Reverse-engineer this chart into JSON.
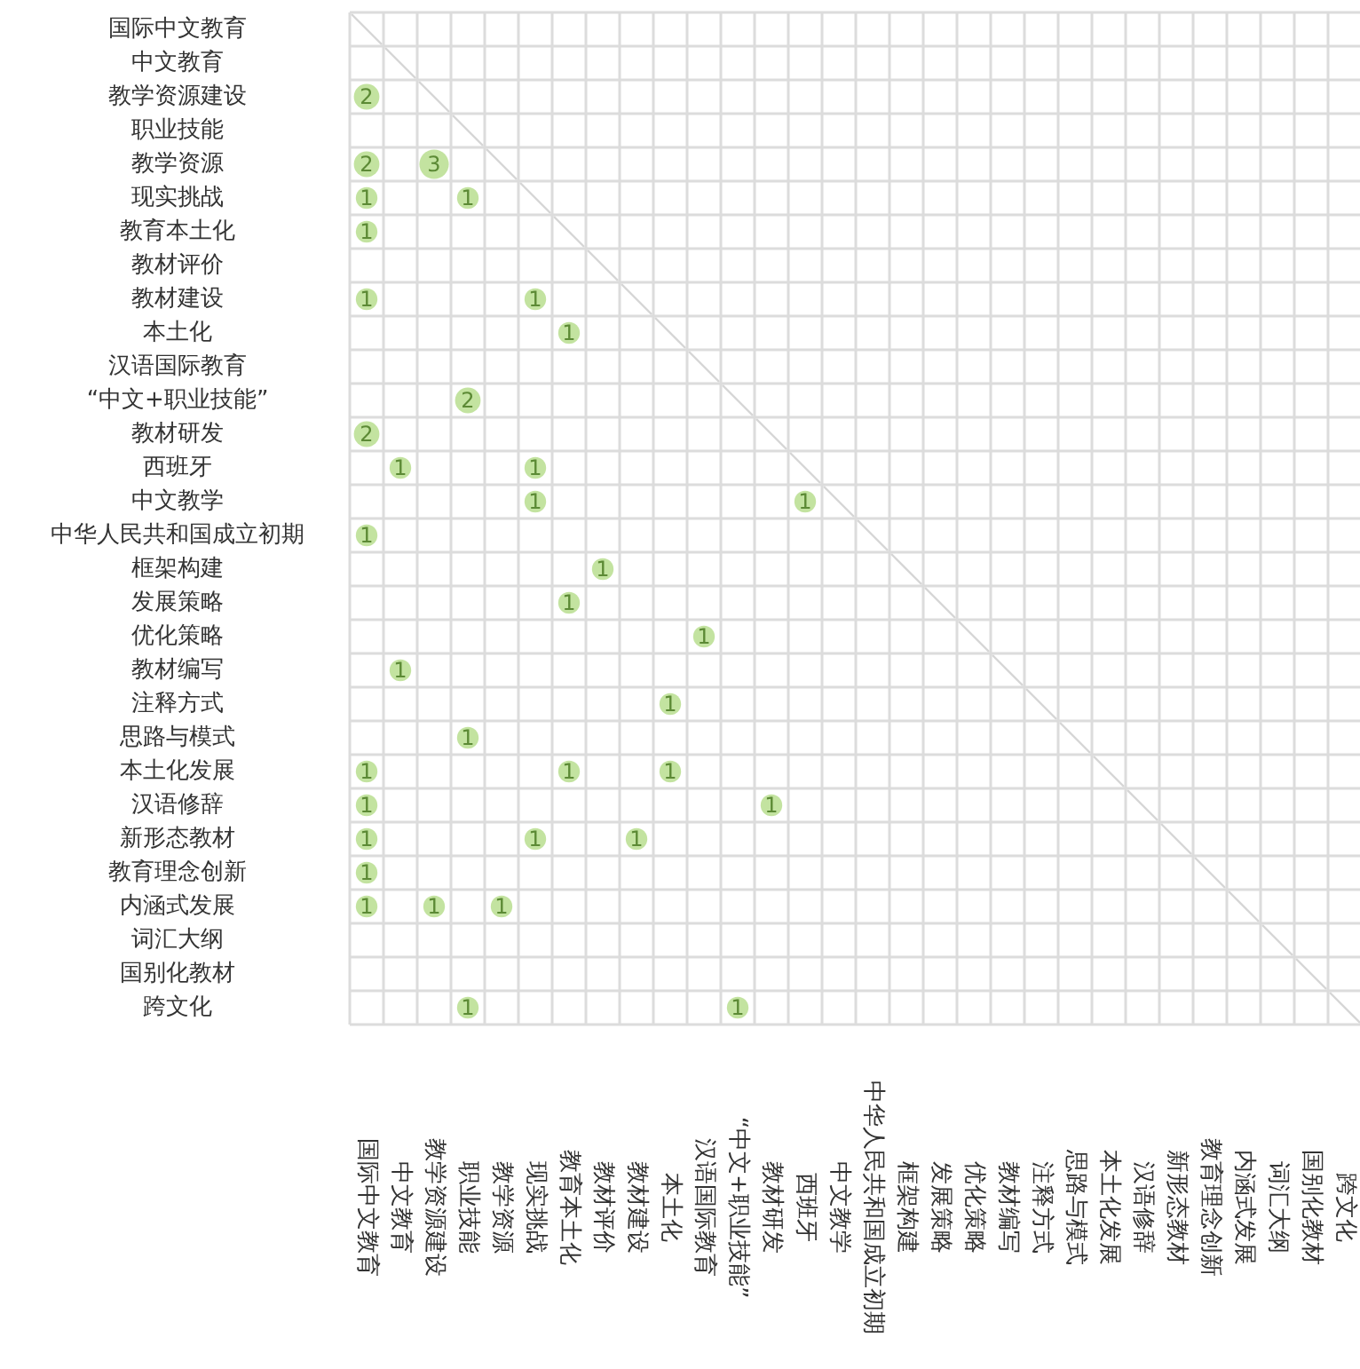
{
  "chart_data": {
    "type": "heatmap",
    "color": "#c3e3a0",
    "grid": true,
    "data_labels": true,
    "categories": [
      "国际中文教育",
      "中文教育",
      "教学资源建设",
      "职业技能",
      "教学资源",
      "现实挑战",
      "教育本土化",
      "教材评价",
      "教材建设",
      "本土化",
      "汉语国际教育",
      "“中文+职业技能”",
      "教材研发",
      "西班牙",
      "中文教学",
      "中华人民共和国成立初期",
      "框架构建",
      "发展策略",
      "优化策略",
      "教材编写",
      "注释方式",
      "思路与模式",
      "本土化发展",
      "汉语修辞",
      "新形态教材",
      "教育理念创新",
      "内涵式发展",
      "词汇大纲",
      "国别化教材",
      "跨文化"
    ],
    "y_categories": [
      "国际中文教育",
      "中文教育",
      "教学资源建设",
      "职业技能",
      "教学资源",
      "现实挑战",
      "教育本土化",
      "教材评价",
      "教材建设",
      "本土化",
      "汉语国际教育",
      "“中文+职业技能”",
      "教材研发",
      "西班牙",
      "中文教学",
      "中华人民共和国成立初期",
      "框架构建",
      "发展策略",
      "优化策略",
      "教材编写",
      "注释方式",
      "思路与模式",
      "本土化发展",
      "汉语修辞",
      "新形态教材",
      "教育理念创新",
      "内涵式发展",
      "词汇大纲",
      "国别化教材",
      "跨文化"
    ],
    "cells": [
      [
        null,
        null,
        null,
        null,
        null,
        null,
        null,
        null,
        null,
        null,
        null,
        null,
        null,
        null,
        null,
        null,
        null,
        null,
        null,
        null,
        null,
        null,
        null,
        null,
        null,
        null,
        null,
        null,
        null,
        null
      ],
      [
        null,
        null,
        null,
        null,
        null,
        null,
        null,
        null,
        null,
        null,
        null,
        null,
        null,
        null,
        null,
        null,
        null,
        null,
        null,
        null,
        null,
        null,
        null,
        null,
        null,
        null,
        null,
        null,
        null,
        null
      ],
      [
        2,
        null,
        null,
        null,
        null,
        null,
        null,
        null,
        null,
        null,
        null,
        null,
        null,
        null,
        null,
        null,
        null,
        null,
        null,
        null,
        null,
        null,
        null,
        null,
        null,
        null,
        null,
        null,
        null,
        null
      ],
      [
        null,
        null,
        null,
        null,
        null,
        null,
        null,
        null,
        null,
        null,
        null,
        null,
        null,
        null,
        null,
        null,
        null,
        null,
        null,
        null,
        null,
        null,
        null,
        null,
        null,
        null,
        null,
        null,
        null,
        null
      ],
      [
        2,
        null,
        3,
        null,
        null,
        null,
        null,
        null,
        null,
        null,
        null,
        null,
        null,
        null,
        null,
        null,
        null,
        null,
        null,
        null,
        null,
        null,
        null,
        null,
        null,
        null,
        null,
        null,
        null,
        null
      ],
      [
        1,
        null,
        null,
        1,
        null,
        null,
        null,
        null,
        null,
        null,
        null,
        null,
        null,
        null,
        null,
        null,
        null,
        null,
        null,
        null,
        null,
        null,
        null,
        null,
        null,
        null,
        null,
        null,
        null,
        null
      ],
      [
        1,
        null,
        null,
        null,
        null,
        null,
        null,
        null,
        null,
        null,
        null,
        null,
        null,
        null,
        null,
        null,
        null,
        null,
        null,
        null,
        null,
        null,
        null,
        null,
        null,
        null,
        null,
        null,
        null,
        null
      ],
      [
        null,
        null,
        null,
        null,
        null,
        null,
        null,
        null,
        null,
        null,
        null,
        null,
        null,
        null,
        null,
        null,
        null,
        null,
        null,
        null,
        null,
        null,
        null,
        null,
        null,
        null,
        null,
        null,
        null,
        null
      ],
      [
        1,
        null,
        null,
        null,
        null,
        1,
        null,
        null,
        null,
        null,
        null,
        null,
        null,
        null,
        null,
        null,
        null,
        null,
        null,
        null,
        null,
        null,
        null,
        null,
        null,
        null,
        null,
        null,
        null,
        null
      ],
      [
        null,
        null,
        null,
        null,
        null,
        null,
        1,
        null,
        null,
        null,
        null,
        null,
        null,
        null,
        null,
        null,
        null,
        null,
        null,
        null,
        null,
        null,
        null,
        null,
        null,
        null,
        null,
        null,
        null,
        null
      ],
      [
        null,
        null,
        null,
        null,
        null,
        null,
        null,
        null,
        null,
        null,
        null,
        null,
        null,
        null,
        null,
        null,
        null,
        null,
        null,
        null,
        null,
        null,
        null,
        null,
        null,
        null,
        null,
        null,
        null,
        null
      ],
      [
        null,
        null,
        null,
        2,
        null,
        null,
        null,
        null,
        null,
        null,
        null,
        null,
        null,
        null,
        null,
        null,
        null,
        null,
        null,
        null,
        null,
        null,
        null,
        null,
        null,
        null,
        null,
        null,
        null,
        null
      ],
      [
        2,
        null,
        null,
        null,
        null,
        null,
        null,
        null,
        null,
        null,
        null,
        null,
        null,
        null,
        null,
        null,
        null,
        null,
        null,
        null,
        null,
        null,
        null,
        null,
        null,
        null,
        null,
        null,
        null,
        null
      ],
      [
        null,
        1,
        null,
        null,
        null,
        1,
        null,
        null,
        null,
        null,
        null,
        null,
        null,
        null,
        null,
        null,
        null,
        null,
        null,
        null,
        null,
        null,
        null,
        null,
        null,
        null,
        null,
        null,
        null,
        null
      ],
      [
        null,
        null,
        null,
        null,
        null,
        1,
        null,
        null,
        null,
        null,
        null,
        null,
        null,
        1,
        null,
        null,
        null,
        null,
        null,
        null,
        null,
        null,
        null,
        null,
        null,
        null,
        null,
        null,
        null,
        null
      ],
      [
        1,
        null,
        null,
        null,
        null,
        null,
        null,
        null,
        null,
        null,
        null,
        null,
        null,
        null,
        null,
        null,
        null,
        null,
        null,
        null,
        null,
        null,
        null,
        null,
        null,
        null,
        null,
        null,
        null,
        null
      ],
      [
        null,
        null,
        null,
        null,
        null,
        null,
        null,
        1,
        null,
        null,
        null,
        null,
        null,
        null,
        null,
        null,
        null,
        null,
        null,
        null,
        null,
        null,
        null,
        null,
        null,
        null,
        null,
        null,
        null,
        null
      ],
      [
        null,
        null,
        null,
        null,
        null,
        null,
        1,
        null,
        null,
        null,
        null,
        null,
        null,
        null,
        null,
        null,
        null,
        null,
        null,
        null,
        null,
        null,
        null,
        null,
        null,
        null,
        null,
        null,
        null,
        null
      ],
      [
        null,
        null,
        null,
        null,
        null,
        null,
        null,
        null,
        null,
        null,
        1,
        null,
        null,
        null,
        null,
        null,
        null,
        null,
        null,
        null,
        null,
        null,
        null,
        null,
        null,
        null,
        null,
        null,
        null,
        null
      ],
      [
        null,
        1,
        null,
        null,
        null,
        null,
        null,
        null,
        null,
        null,
        null,
        null,
        null,
        null,
        null,
        null,
        null,
        null,
        null,
        null,
        null,
        null,
        null,
        null,
        null,
        null,
        null,
        null,
        null,
        null
      ],
      [
        null,
        null,
        null,
        null,
        null,
        null,
        null,
        null,
        null,
        1,
        null,
        null,
        null,
        null,
        null,
        null,
        null,
        null,
        null,
        null,
        null,
        null,
        null,
        null,
        null,
        null,
        null,
        null,
        null,
        null
      ],
      [
        null,
        null,
        null,
        1,
        null,
        null,
        null,
        null,
        null,
        null,
        null,
        null,
        null,
        null,
        null,
        null,
        null,
        null,
        null,
        null,
        null,
        null,
        null,
        null,
        null,
        null,
        null,
        null,
        null,
        null
      ],
      [
        1,
        null,
        null,
        null,
        null,
        null,
        1,
        null,
        null,
        1,
        null,
        null,
        null,
        null,
        null,
        null,
        null,
        null,
        null,
        null,
        null,
        null,
        null,
        null,
        null,
        null,
        null,
        null,
        null,
        null
      ],
      [
        1,
        null,
        null,
        null,
        null,
        null,
        null,
        null,
        null,
        null,
        null,
        null,
        1,
        null,
        null,
        null,
        null,
        null,
        null,
        null,
        null,
        null,
        null,
        null,
        null,
        null,
        null,
        null,
        null,
        null
      ],
      [
        1,
        null,
        null,
        null,
        null,
        1,
        null,
        null,
        1,
        null,
        null,
        null,
        null,
        null,
        null,
        null,
        null,
        null,
        null,
        null,
        null,
        null,
        null,
        null,
        null,
        null,
        null,
        null,
        null,
        null
      ],
      [
        1,
        null,
        null,
        null,
        null,
        null,
        null,
        null,
        null,
        null,
        null,
        null,
        null,
        null,
        null,
        null,
        null,
        null,
        null,
        null,
        null,
        null,
        null,
        null,
        null,
        null,
        null,
        null,
        null,
        null
      ],
      [
        1,
        null,
        1,
        null,
        1,
        null,
        null,
        null,
        null,
        null,
        null,
        null,
        null,
        null,
        null,
        null,
        null,
        null,
        null,
        null,
        null,
        null,
        null,
        null,
        null,
        null,
        null,
        null,
        null,
        null
      ],
      [
        null,
        null,
        null,
        null,
        null,
        null,
        null,
        null,
        null,
        null,
        null,
        null,
        null,
        null,
        null,
        null,
        null,
        null,
        null,
        null,
        null,
        null,
        null,
        null,
        null,
        null,
        null,
        null,
        null,
        null
      ],
      [
        null,
        null,
        null,
        null,
        null,
        null,
        null,
        null,
        null,
        null,
        null,
        null,
        null,
        null,
        null,
        null,
        null,
        null,
        null,
        null,
        null,
        null,
        null,
        null,
        null,
        null,
        null,
        null,
        null,
        null
      ],
      [
        null,
        null,
        null,
        1,
        null,
        null,
        null,
        null,
        null,
        null,
        null,
        1,
        null,
        null,
        null,
        null,
        null,
        null,
        null,
        null,
        null,
        null,
        null,
        null,
        null,
        null,
        null,
        null,
        null,
        null
      ]
    ]
  }
}
